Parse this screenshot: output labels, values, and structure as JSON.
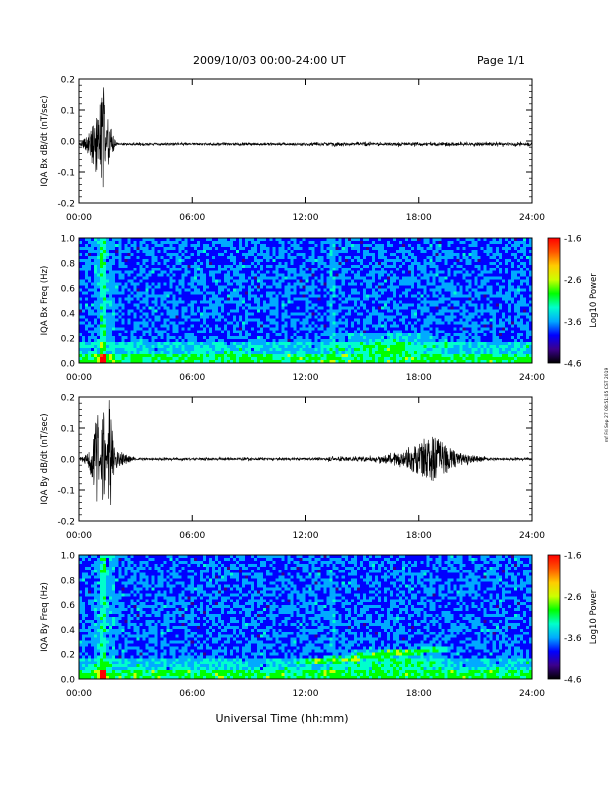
{
  "header": {
    "title": "2009/10/03  00:00-24:00 UT",
    "page": "Page 1/1"
  },
  "side_note": "rnf Fri Sep 27 08:51:05 CST 2019",
  "xaxis": {
    "label": "Universal Time (hh:mm)",
    "ticks": [
      "00:00",
      "06:00",
      "12:00",
      "18:00",
      "24:00"
    ]
  },
  "colorbar": {
    "label": "Log10 Power",
    "ticks": [
      "-1.6",
      "-2.6",
      "-3.6",
      "-4.6"
    ],
    "range": [
      -4.6,
      -1.6
    ]
  },
  "chart_data": [
    {
      "type": "line",
      "ylabel": "IQA Bx dB/dt (nT/sec)",
      "xlim": [
        0,
        24
      ],
      "ylim": [
        -0.2,
        0.2
      ],
      "yticks": [
        "0.2",
        "0.1",
        "0.0",
        "-0.1",
        "-0.2"
      ],
      "series": [
        {
          "x": [
            0,
            0.5,
            1.0,
            1.3,
            1.5,
            2.0,
            3,
            6,
            9,
            12,
            15,
            18,
            21,
            24
          ],
          "y": [
            -0.01,
            0.02,
            0.1,
            0.19,
            -0.1,
            -0.01,
            -0.01,
            -0.01,
            -0.01,
            -0.01,
            -0.01,
            -0.01,
            -0.01,
            -0.01
          ]
        }
      ]
    },
    {
      "type": "heatmap",
      "ylabel": "IQA Bx Freq (Hz)",
      "xlim": [
        0,
        24
      ],
      "ylim": [
        0,
        1.0
      ],
      "yticks": [
        "1.0",
        "0.8",
        "0.6",
        "0.4",
        "0.2",
        "0.0"
      ],
      "colormap": [
        "#000000",
        "#3c008c",
        "#0000ff",
        "#00aaff",
        "#00ffcc",
        "#00ff00",
        "#ccff00",
        "#ffcc00",
        "#ff5500",
        "#ff0000"
      ]
    },
    {
      "type": "line",
      "ylabel": "IQA By dB/dt (nT/sec)",
      "xlim": [
        0,
        24
      ],
      "ylim": [
        -0.2,
        0.2
      ],
      "yticks": [
        "0.2",
        "0.1",
        "0.0",
        "-0.1",
        "-0.2"
      ],
      "series": [
        {
          "x": [
            0,
            0.5,
            1.0,
            1.3,
            1.6,
            2.0,
            3,
            6,
            9,
            12,
            15,
            17,
            18.8,
            20,
            22,
            24
          ],
          "y": [
            0.0,
            0.02,
            0.15,
            -0.2,
            0.2,
            -0.03,
            0.0,
            0.0,
            0.0,
            0.0,
            0.0,
            0.02,
            0.08,
            0.02,
            0.0,
            0.0
          ]
        }
      ]
    },
    {
      "type": "heatmap",
      "ylabel": "IQA By Freq (Hz)",
      "xlim": [
        0,
        24
      ],
      "ylim": [
        0,
        1.0
      ],
      "yticks": [
        "1.0",
        "0.8",
        "0.6",
        "0.4",
        "0.2",
        "0.0"
      ],
      "colormap": [
        "#000000",
        "#3c008c",
        "#0000ff",
        "#00aaff",
        "#00ffcc",
        "#00ff00",
        "#ccff00",
        "#ffcc00",
        "#ff5500",
        "#ff0000"
      ]
    }
  ]
}
